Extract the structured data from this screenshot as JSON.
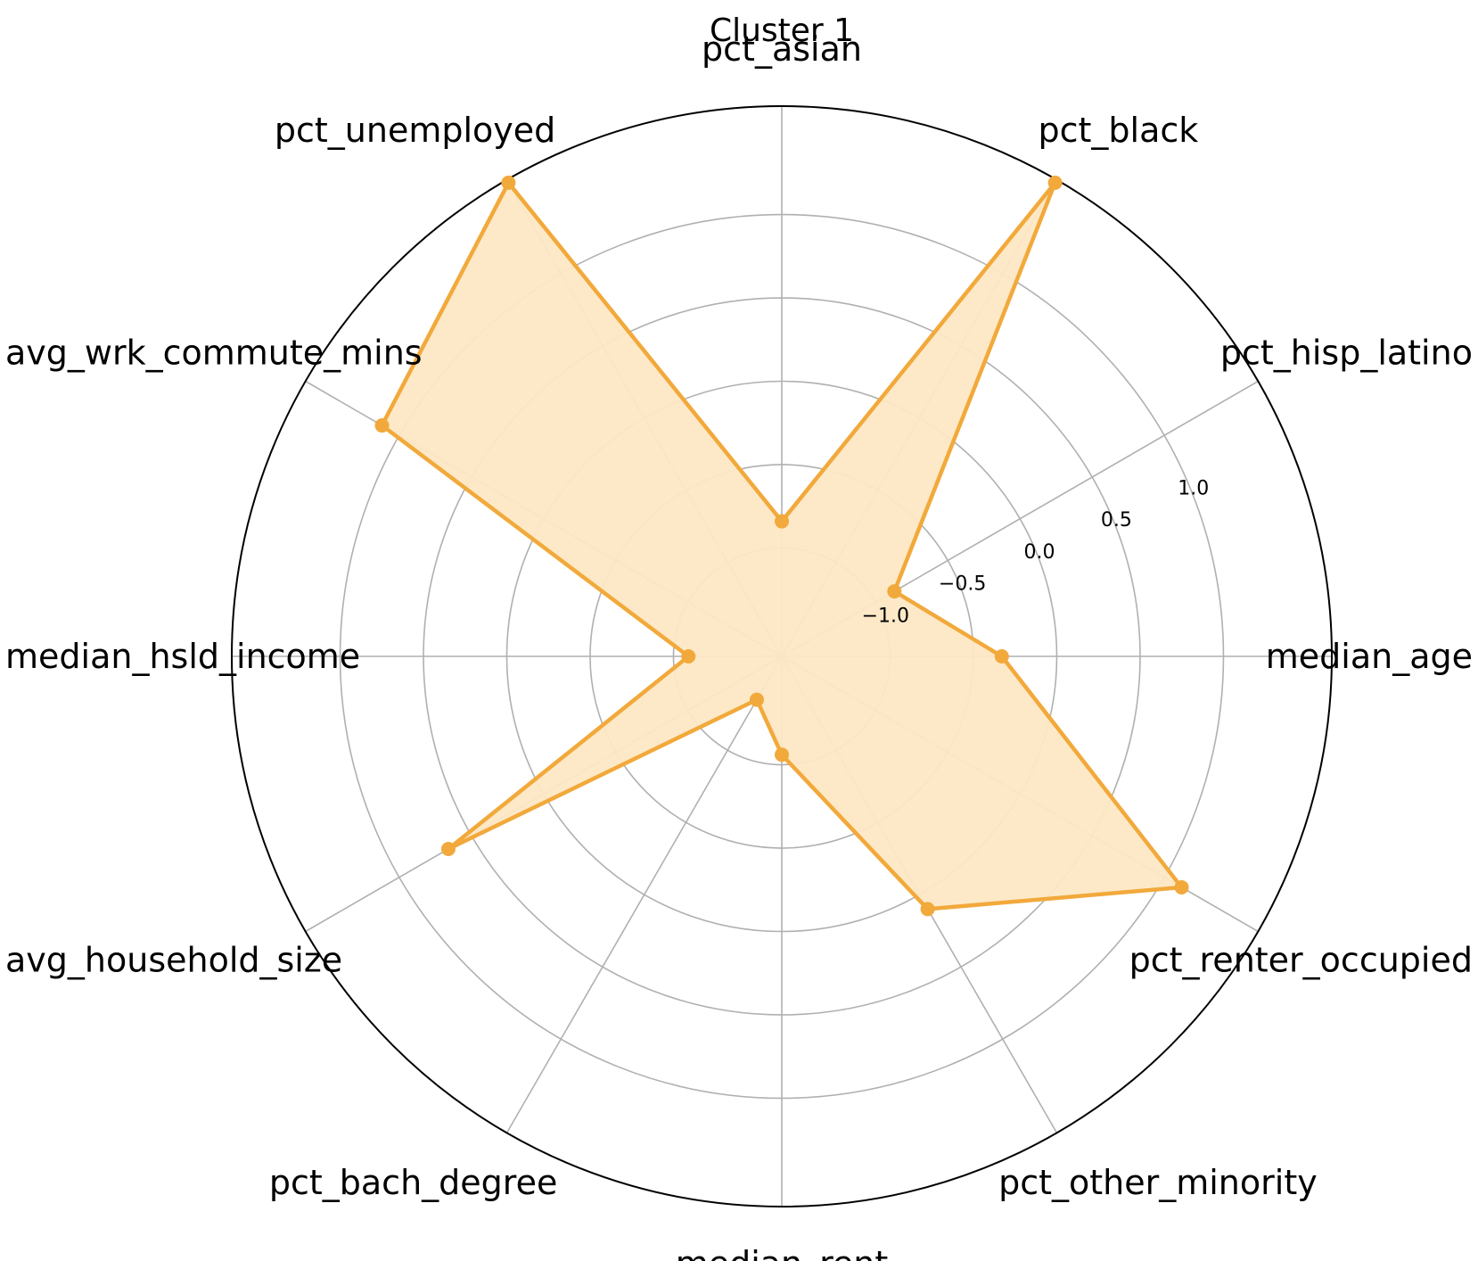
{
  "chart_data": {
    "type": "radar",
    "title": "Cluster 1",
    "axes": [
      "median_age",
      "pct_hisp_latino",
      "pct_black",
      "pct_asian",
      "pct_unemployed",
      "avg_wrk_commute_mins",
      "median_hsld_income",
      "avg_household_size",
      "pct_bach_degree",
      "median_rent",
      "pct_other_minority",
      "pct_renter_occupied"
    ],
    "series": [
      {
        "values": [
          -0.33,
          -0.87,
          1.63,
          -0.84,
          1.63,
          1.12,
          -1.09,
          0.66,
          -1.35,
          -1.06,
          0.1,
          1.12
        ]
      }
    ],
    "rlim": [
      -1.65,
      1.65
    ],
    "radial_ticks": [
      -1.0,
      -0.5,
      0.0,
      0.5,
      1.0
    ],
    "radial_tick_labels": [
      "−1.0",
      "−0.5",
      "0.0",
      "0.5",
      "1.0"
    ],
    "grid": true,
    "colors": {
      "series_line": "#f2a93b",
      "series_fill": "#fde8c4",
      "grid": "#b0b0b0",
      "outer_ring": "#000000"
    }
  }
}
